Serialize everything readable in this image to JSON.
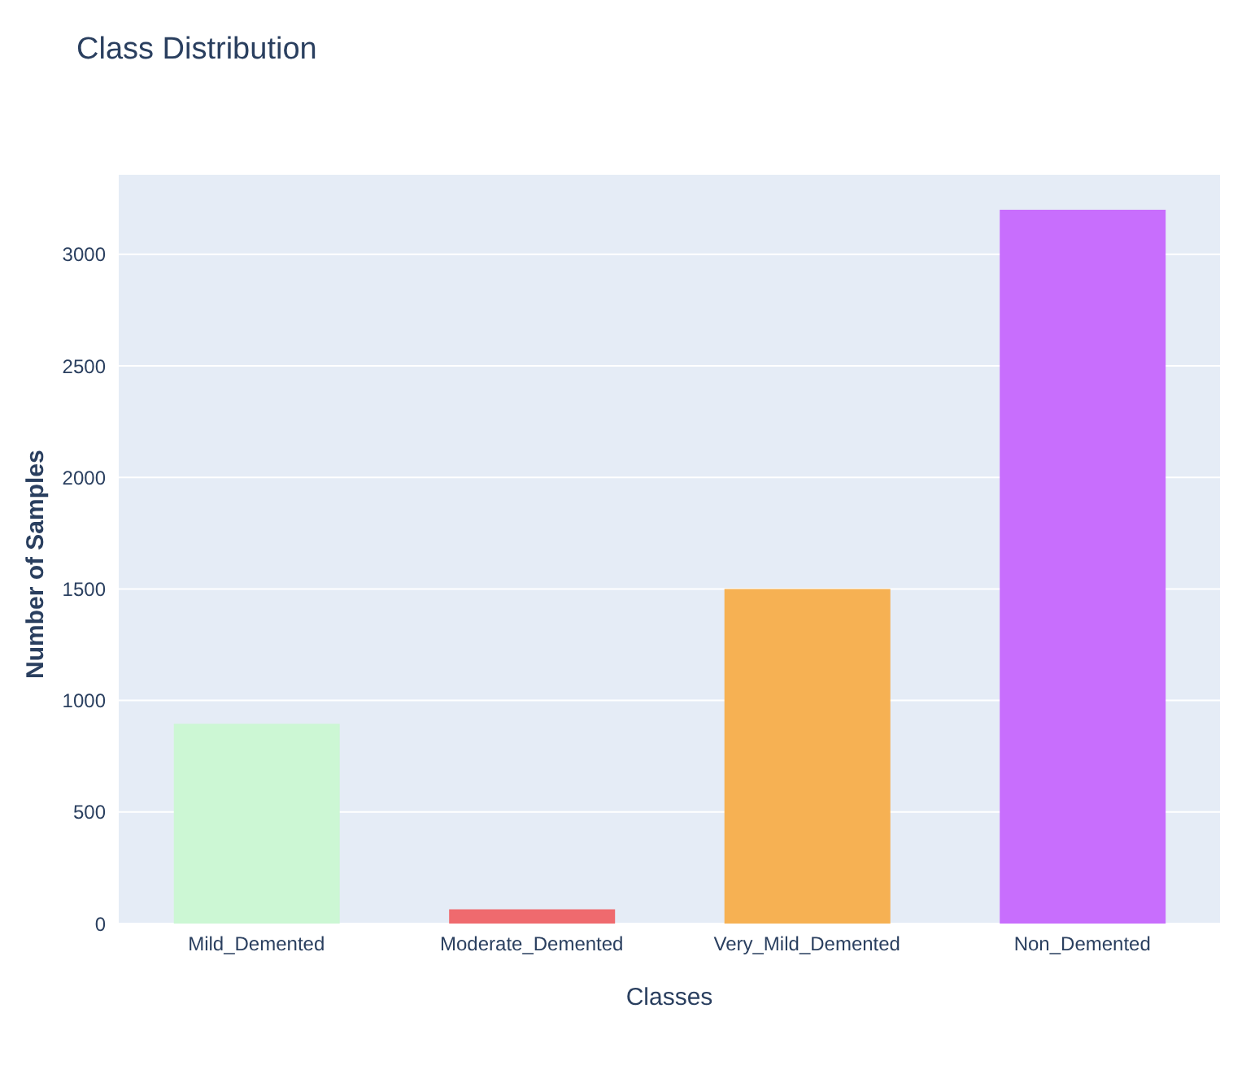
{
  "chart_data": {
    "type": "bar",
    "title": "Class Distribution",
    "xlabel": "Classes",
    "ylabel": "Number of Samples",
    "categories": [
      "Mild_Demented",
      "Moderate_Demented",
      "Very_Mild_Demented",
      "Non_Demented"
    ],
    "values": [
      896,
      64,
      1500,
      3200
    ],
    "colors": [
      "#ccf7d4",
      "#ef6a6e",
      "#f6b153",
      "#c86efd"
    ],
    "ylim": [
      0,
      3360
    ],
    "yticks": [
      0,
      500,
      1000,
      1500,
      2000,
      2500,
      3000
    ],
    "grid": "y"
  }
}
